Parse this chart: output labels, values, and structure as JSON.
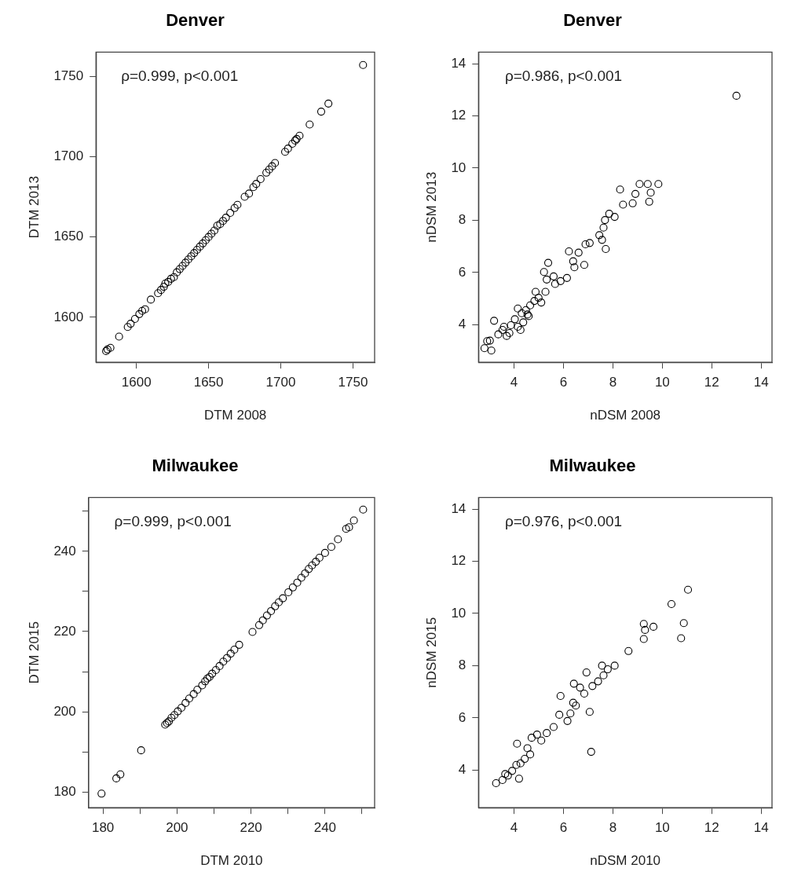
{
  "chart_data": [
    {
      "type": "scatter",
      "title": "Denver",
      "xlabel": "DTM 2008",
      "ylabel": "DTM 2013",
      "annotations": [
        "ρ=0.999, p<0.001"
      ],
      "marker": "circle",
      "color": "#000000",
      "xlim": [
        1572,
        1765
      ],
      "ylim": [
        1572,
        1765
      ],
      "xticks": [
        1600,
        1650,
        1700,
        1750
      ],
      "yticks": [
        1600,
        1650,
        1700,
        1750
      ],
      "x": [
        1579,
        1580,
        1582,
        1588,
        1594,
        1596,
        1599,
        1602,
        1604,
        1606,
        1610,
        1615,
        1617,
        1619,
        1620,
        1622,
        1624,
        1626,
        1628,
        1630,
        1632,
        1634,
        1636,
        1638,
        1640,
        1642,
        1644,
        1646,
        1648,
        1650,
        1652,
        1654,
        1656,
        1658,
        1660,
        1662,
        1665,
        1668,
        1670,
        1675,
        1678,
        1681,
        1683,
        1686,
        1690,
        1692,
        1694,
        1696,
        1703,
        1705,
        1708,
        1710,
        1711,
        1713,
        1720,
        1728,
        1733,
        1757
      ],
      "values": [
        1579,
        1580,
        1581,
        1588,
        1594,
        1596,
        1599,
        1602,
        1604,
        1605,
        1611,
        1615,
        1617,
        1619,
        1621,
        1622,
        1624,
        1625,
        1628,
        1630,
        1632,
        1634,
        1636,
        1638,
        1640,
        1642,
        1644,
        1646,
        1648,
        1650,
        1652,
        1654,
        1657,
        1658,
        1660,
        1662,
        1665,
        1668,
        1670,
        1675,
        1677,
        1681,
        1683,
        1686,
        1690,
        1692,
        1694,
        1696,
        1703,
        1705,
        1708,
        1710,
        1711,
        1713,
        1720,
        1728,
        1733,
        1757
      ]
    },
    {
      "type": "scatter",
      "title": "Denver",
      "xlabel": "nDSM 2008",
      "ylabel": "nDSM 2013",
      "annotations": [
        "ρ=0.986, p<0.001"
      ],
      "marker": "circle",
      "color": "#000000",
      "xlim": [
        2.56,
        14.44
      ],
      "ylim": [
        2.56,
        14.44
      ],
      "xticks": [
        4,
        6,
        8,
        10,
        12,
        14
      ],
      "yticks": [
        4,
        6,
        8,
        10,
        12,
        14
      ],
      "x": [
        2.8,
        2.91,
        3.08,
        3.19,
        3.02,
        3.36,
        3.53,
        3.7,
        3.87,
        4.03,
        4.15,
        4.26,
        4.15,
        4.31,
        4.48,
        4.65,
        4.59,
        4.82,
        4.87,
        4.99,
        5.1,
        5.27,
        5.21,
        5.38,
        5.32,
        5.6,
        5.66,
        5.88,
        6.14,
        6.22,
        6.39,
        6.44,
        6.61,
        6.84,
        6.89,
        7.06,
        7.45,
        7.56,
        7.62,
        7.71,
        7.68,
        7.85,
        8.07,
        8.29,
        8.41,
        8.8,
        8.91,
        9.08,
        9.41,
        9.53,
        9.47,
        9.84,
        13.0,
        3.59,
        3.81,
        4.37,
        4.54
      ],
      "values": [
        3.1,
        3.37,
        3.01,
        4.15,
        3.39,
        3.63,
        3.8,
        3.57,
        3.98,
        4.21,
        3.92,
        3.8,
        4.62,
        4.44,
        4.56,
        4.74,
        4.33,
        4.91,
        5.26,
        5.03,
        4.85,
        5.26,
        6.02,
        6.37,
        5.73,
        5.85,
        5.56,
        5.67,
        5.79,
        6.81,
        6.43,
        6.2,
        6.76,
        6.29,
        7.08,
        7.13,
        7.43,
        7.25,
        7.72,
        6.9,
        8.01,
        8.25,
        8.13,
        9.18,
        8.6,
        8.65,
        9.01,
        9.39,
        9.39,
        9.06,
        8.71,
        9.39,
        12.77,
        3.92,
        3.68,
        4.09,
        4.39
      ]
    },
    {
      "type": "scatter",
      "title": "Milwaukee",
      "xlabel": "DTM 2010",
      "ylabel": "DTM 2015",
      "annotations": [
        "ρ=0.999, p<0.001"
      ],
      "marker": "circle",
      "color": "#000000",
      "xlim": [
        176.1,
        253.4
      ],
      "ylim": [
        176.1,
        253.4
      ],
      "xticks": [
        180,
        {
          "value": 190,
          "label": null
        },
        200,
        {
          "value": 210,
          "label": null
        },
        220,
        {
          "value": 230,
          "label": null
        },
        240,
        {
          "value": 250,
          "label": null
        }
      ],
      "yticks": [
        180,
        {
          "value": 190,
          "label": null
        },
        200,
        {
          "value": 210,
          "label": null
        },
        220,
        {
          "value": 230,
          "label": null
        },
        240,
        {
          "value": 250,
          "label": null
        }
      ],
      "x": [
        179.6,
        183.6,
        184.7,
        190.3,
        196.8,
        197.3,
        197.8,
        198.5,
        199.3,
        200.2,
        201.2,
        202.3,
        203.3,
        204.5,
        205.5,
        206.8,
        207.6,
        208.2,
        208.8,
        209.5,
        210.5,
        211.5,
        212.5,
        213.5,
        214.5,
        215.5,
        216.8,
        220.4,
        222.2,
        223.2,
        224.3,
        225.4,
        226.5,
        227.5,
        228.6,
        230.1,
        231.3,
        232.5,
        233.6,
        234.6,
        235.6,
        236.5,
        237.5,
        238.5,
        240.0,
        241.7,
        243.5,
        245.7,
        246.5,
        247.8,
        250.3
      ],
      "values": [
        179.6,
        183.4,
        184.4,
        190.4,
        196.8,
        197.2,
        197.6,
        198.5,
        199.2,
        200.1,
        201.0,
        202.2,
        203.3,
        204.4,
        205.5,
        206.6,
        207.6,
        208.3,
        208.7,
        209.5,
        210.4,
        211.4,
        212.5,
        213.4,
        214.5,
        215.5,
        216.7,
        219.9,
        221.6,
        222.8,
        224.0,
        225.1,
        226.3,
        227.3,
        228.3,
        229.8,
        231.0,
        232.2,
        233.4,
        234.5,
        235.6,
        236.5,
        237.4,
        238.4,
        239.6,
        241.1,
        243.0,
        245.6,
        246.0,
        247.7,
        250.4
      ]
    },
    {
      "type": "scatter",
      "title": "Milwaukee",
      "xlabel": "nDSM 2010",
      "ylabel": "nDSM 2015",
      "annotations": [
        "ρ=0.976, p<0.001"
      ],
      "marker": "circle",
      "color": "#000000",
      "xlim": [
        2.56,
        14.44
      ],
      "ylim": [
        2.56,
        14.44
      ],
      "xticks": [
        4,
        6,
        8,
        10,
        12,
        14
      ],
      "yticks": [
        4,
        6,
        8,
        10,
        12,
        14
      ],
      "x": [
        3.27,
        3.53,
        3.64,
        3.75,
        3.92,
        4.09,
        4.2,
        4.12,
        4.26,
        4.43,
        4.54,
        4.65,
        4.71,
        4.93,
        5.1,
        5.32,
        5.6,
        5.88,
        5.83,
        6.16,
        6.28,
        6.39,
        6.5,
        6.42,
        6.67,
        6.84,
        6.93,
        7.06,
        7.12,
        7.17,
        7.4,
        7.56,
        7.62,
        7.79,
        8.07,
        8.63,
        9.25,
        9.25,
        9.3,
        9.64,
        10.37,
        10.76,
        10.87,
        11.04
      ],
      "values": [
        3.5,
        3.62,
        3.85,
        3.79,
        3.97,
        4.2,
        3.67,
        5.01,
        4.26,
        4.43,
        4.84,
        4.6,
        5.24,
        5.36,
        5.13,
        5.42,
        5.65,
        6.84,
        6.12,
        5.88,
        6.17,
        6.58,
        6.47,
        7.31,
        7.16,
        6.93,
        7.74,
        6.23,
        4.7,
        7.22,
        7.4,
        8.0,
        7.63,
        7.86,
        8.0,
        8.56,
        9.02,
        9.6,
        9.37,
        9.49,
        10.36,
        9.05,
        9.63,
        10.91
      ]
    }
  ]
}
